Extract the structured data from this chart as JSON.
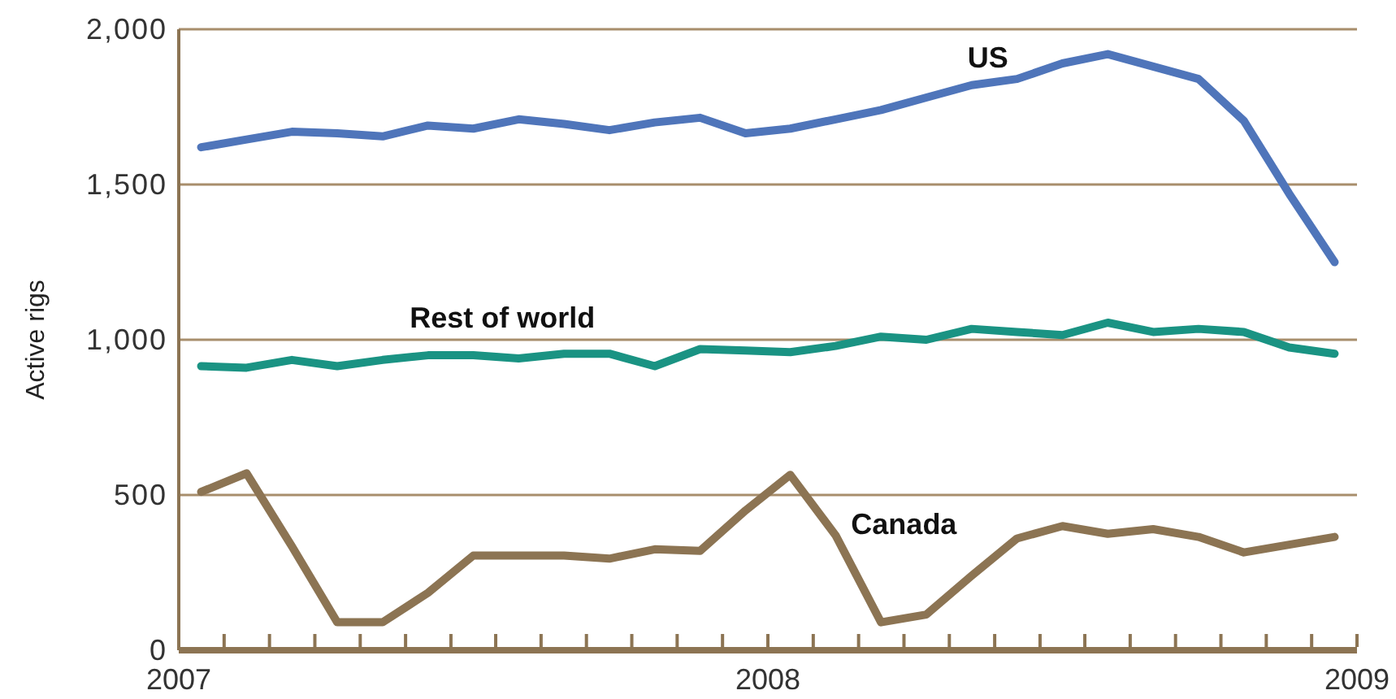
{
  "chart_data": {
    "type": "line",
    "ylabel": "Active rigs",
    "x": [
      2007.038,
      2007.115,
      2007.192,
      2007.269,
      2007.346,
      2007.423,
      2007.5,
      2007.577,
      2007.654,
      2007.731,
      2007.808,
      2007.885,
      2007.962,
      2008.038,
      2008.115,
      2008.192,
      2008.269,
      2008.346,
      2008.423,
      2008.5,
      2008.577,
      2008.654,
      2008.731,
      2008.808,
      2008.885,
      2008.962
    ],
    "series": [
      {
        "name": "US",
        "color": "#4f75ba",
        "values": [
          1620,
          1645,
          1670,
          1665,
          1655,
          1690,
          1680,
          1710,
          1695,
          1675,
          1700,
          1715,
          1665,
          1680,
          1710,
          1740,
          1780,
          1820,
          1840,
          1890,
          1920,
          1880,
          1840,
          1705,
          1470,
          1250
        ]
      },
      {
        "name": "Rest of world",
        "color": "#1a9383",
        "values": [
          915,
          910,
          935,
          915,
          935,
          950,
          950,
          940,
          955,
          955,
          915,
          970,
          965,
          960,
          980,
          1010,
          1000,
          1035,
          1025,
          1015,
          1055,
          1025,
          1035,
          1025,
          975,
          955
        ]
      },
      {
        "name": "Canada",
        "color": "#8c7453",
        "values": [
          510,
          570,
          335,
          90,
          90,
          185,
          305,
          305,
          305,
          295,
          325,
          320,
          450,
          565,
          370,
          90,
          115,
          240,
          360,
          400,
          375,
          390,
          365,
          315,
          340,
          365
        ]
      }
    ],
    "xlim": [
      2007,
      2009
    ],
    "xticks": [
      2007,
      {
        "value": 2007.077,
        "label": null
      },
      {
        "value": 2007.154,
        "label": null
      },
      {
        "value": 2007.231,
        "label": null
      },
      {
        "value": 2007.308,
        "label": null
      },
      {
        "value": 2007.385,
        "label": null
      },
      {
        "value": 2007.462,
        "label": null
      },
      {
        "value": 2007.538,
        "label": null
      },
      {
        "value": 2007.615,
        "label": null
      },
      {
        "value": 2007.692,
        "label": null
      },
      {
        "value": 2007.769,
        "label": null
      },
      {
        "value": 2007.846,
        "label": null
      },
      {
        "value": 2007.923,
        "label": null
      },
      2008,
      {
        "value": 2008.077,
        "label": null
      },
      {
        "value": 2008.154,
        "label": null
      },
      {
        "value": 2008.231,
        "label": null
      },
      {
        "value": 2008.308,
        "label": null
      },
      {
        "value": 2008.385,
        "label": null
      },
      {
        "value": 2008.462,
        "label": null
      },
      {
        "value": 2008.538,
        "label": null
      },
      {
        "value": 2008.615,
        "label": null
      },
      {
        "value": 2008.692,
        "label": null
      },
      {
        "value": 2008.769,
        "label": null
      },
      {
        "value": 2008.846,
        "label": null
      },
      {
        "value": 2008.923,
        "label": null
      },
      2009
    ],
    "ylim": [
      0,
      2000
    ],
    "yticks": [
      0,
      500,
      {
        "value": 1000,
        "label": "1,000"
      },
      {
        "value": 1500,
        "label": "1,500"
      },
      {
        "value": 2000,
        "label": "2,000"
      }
    ],
    "grid": "y"
  }
}
